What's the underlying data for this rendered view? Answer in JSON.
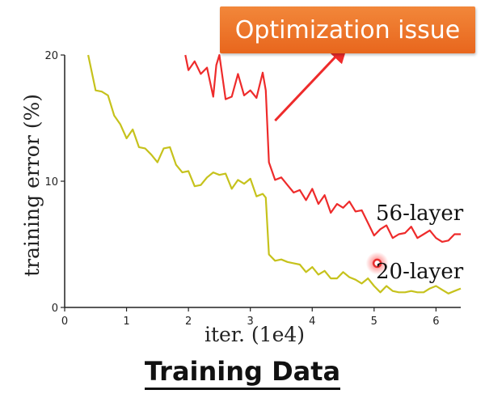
{
  "callout": {
    "text": "Optimization issue",
    "color": "#ee7227"
  },
  "caption": "Training Data",
  "colors": {
    "series_56": "#ee2b2b",
    "series_20": "#c6c21c",
    "arrow": "#ee2b2b",
    "marker": "#e83030"
  },
  "chart_data": {
    "type": "line",
    "title": "",
    "xlabel": "iter. (1e4)",
    "ylabel": "training error (%)",
    "xlim": [
      0,
      6.4
    ],
    "ylim": [
      0,
      20
    ],
    "xticks": [
      0,
      1,
      2,
      3,
      4,
      5,
      6
    ],
    "yticks": [
      0,
      10,
      20
    ],
    "grid": false,
    "series": [
      {
        "name": "56-layer",
        "label": "56-layer",
        "color": "#ee2b2b",
        "x": [
          1.95,
          2.0,
          2.1,
          2.2,
          2.3,
          2.4,
          2.45,
          2.5,
          2.6,
          2.7,
          2.8,
          2.9,
          3.0,
          3.1,
          3.2,
          3.25,
          3.3,
          3.4,
          3.5,
          3.6,
          3.7,
          3.8,
          3.9,
          4.0,
          4.1,
          4.2,
          4.3,
          4.4,
          4.5,
          4.6,
          4.7,
          4.8,
          4.9,
          5.0,
          5.1,
          5.2,
          5.3,
          5.4,
          5.5,
          5.6,
          5.7,
          5.8,
          5.9,
          6.0,
          6.1,
          6.2,
          6.3,
          6.4
        ],
        "y": [
          20.0,
          18.8,
          19.5,
          18.5,
          19.0,
          16.7,
          19.2,
          20.0,
          16.5,
          16.7,
          18.5,
          16.8,
          17.2,
          16.6,
          18.6,
          17.2,
          11.5,
          10.1,
          10.3,
          9.7,
          9.1,
          9.3,
          8.5,
          9.4,
          8.2,
          8.9,
          7.5,
          8.2,
          7.9,
          8.4,
          7.6,
          7.7,
          6.7,
          5.7,
          6.2,
          6.5,
          5.5,
          5.8,
          5.9,
          6.4,
          5.5,
          5.8,
          6.1,
          5.5,
          5.2,
          5.3,
          5.8,
          5.8
        ]
      },
      {
        "name": "20-layer",
        "label": "20-layer",
        "color": "#c6c21c",
        "x": [
          0.38,
          0.5,
          0.6,
          0.7,
          0.8,
          0.9,
          1.0,
          1.1,
          1.2,
          1.3,
          1.4,
          1.5,
          1.6,
          1.7,
          1.8,
          1.9,
          2.0,
          2.1,
          2.2,
          2.3,
          2.4,
          2.5,
          2.6,
          2.7,
          2.8,
          2.9,
          3.0,
          3.1,
          3.2,
          3.25,
          3.3,
          3.4,
          3.5,
          3.6,
          3.7,
          3.8,
          3.9,
          4.0,
          4.1,
          4.2,
          4.3,
          4.4,
          4.5,
          4.6,
          4.7,
          4.8,
          4.9,
          5.0,
          5.1,
          5.2,
          5.3,
          5.4,
          5.5,
          5.6,
          5.7,
          5.8,
          5.9,
          6.0,
          6.1,
          6.2,
          6.3,
          6.4
        ],
        "y": [
          20.0,
          17.2,
          17.1,
          16.8,
          15.2,
          14.5,
          13.4,
          14.1,
          12.7,
          12.6,
          12.1,
          11.5,
          12.6,
          12.7,
          11.3,
          10.7,
          10.8,
          9.6,
          9.7,
          10.3,
          10.7,
          10.5,
          10.6,
          9.4,
          10.1,
          9.8,
          10.2,
          8.8,
          9.0,
          8.7,
          4.2,
          3.7,
          3.8,
          3.6,
          3.5,
          3.4,
          2.8,
          3.2,
          2.6,
          2.9,
          2.3,
          2.3,
          2.8,
          2.4,
          2.2,
          1.9,
          2.3,
          1.7,
          1.2,
          1.7,
          1.3,
          1.2,
          1.2,
          1.3,
          1.2,
          1.2,
          1.5,
          1.7,
          1.4,
          1.1,
          1.3,
          1.5
        ]
      }
    ],
    "annotations": [
      {
        "type": "arrow",
        "from": [
          3.4,
          14.8
        ],
        "to": [
          4.5,
          20.5
        ]
      },
      {
        "type": "marker",
        "at": [
          5.05,
          3.5
        ]
      }
    ]
  }
}
